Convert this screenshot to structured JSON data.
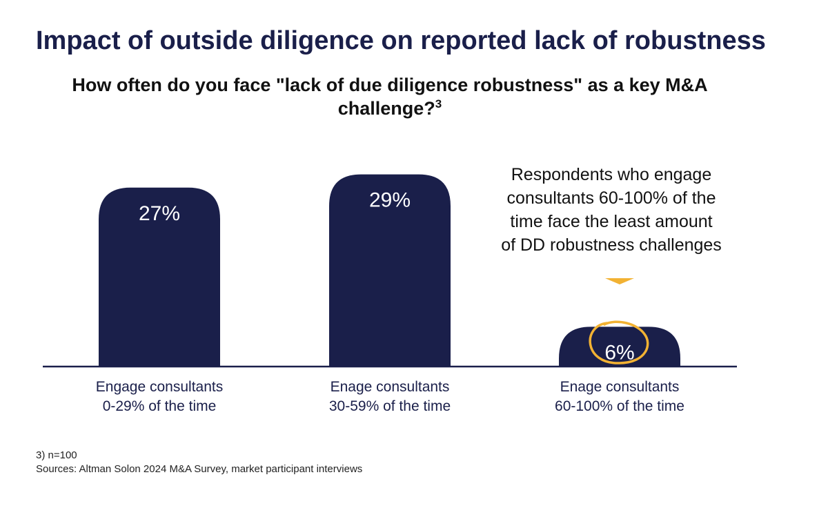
{
  "title": "Impact of outside diligence on reported lack of robustness",
  "subtitle": {
    "text": "How often do you face \"lack of due diligence robustness\" as a key M&A challenge?",
    "footnote_ref": "3"
  },
  "chart_data": {
    "type": "bar",
    "title": "How often do you face \"lack of due diligence robustness\" as a key M&A challenge?",
    "categories": [
      [
        "Engage consultants",
        "0-29% of the time"
      ],
      [
        "Enage consultants",
        "30-59% of the time"
      ],
      [
        "Enage consultants",
        "60-100% of the time"
      ]
    ],
    "values": [
      27,
      29,
      6
    ],
    "value_labels": [
      "27%",
      "29%",
      "6%"
    ],
    "highlight_index": 2,
    "xlabel": "",
    "ylabel": "",
    "ylim": [
      0,
      30
    ],
    "grid": false
  },
  "callout": {
    "lines": [
      "Respondents who engage",
      "consultants 60-100% of the",
      "time face the least amount",
      "of DD robustness challenges"
    ]
  },
  "footnotes": {
    "note": "3) n=100",
    "sources": "Sources: Altman Solon 2024 M&A Survey, market participant interviews"
  },
  "colors": {
    "bar": "#1a1f4a",
    "accent": "#f2b233",
    "axis": "#1a1f4a",
    "text": "#111111"
  }
}
